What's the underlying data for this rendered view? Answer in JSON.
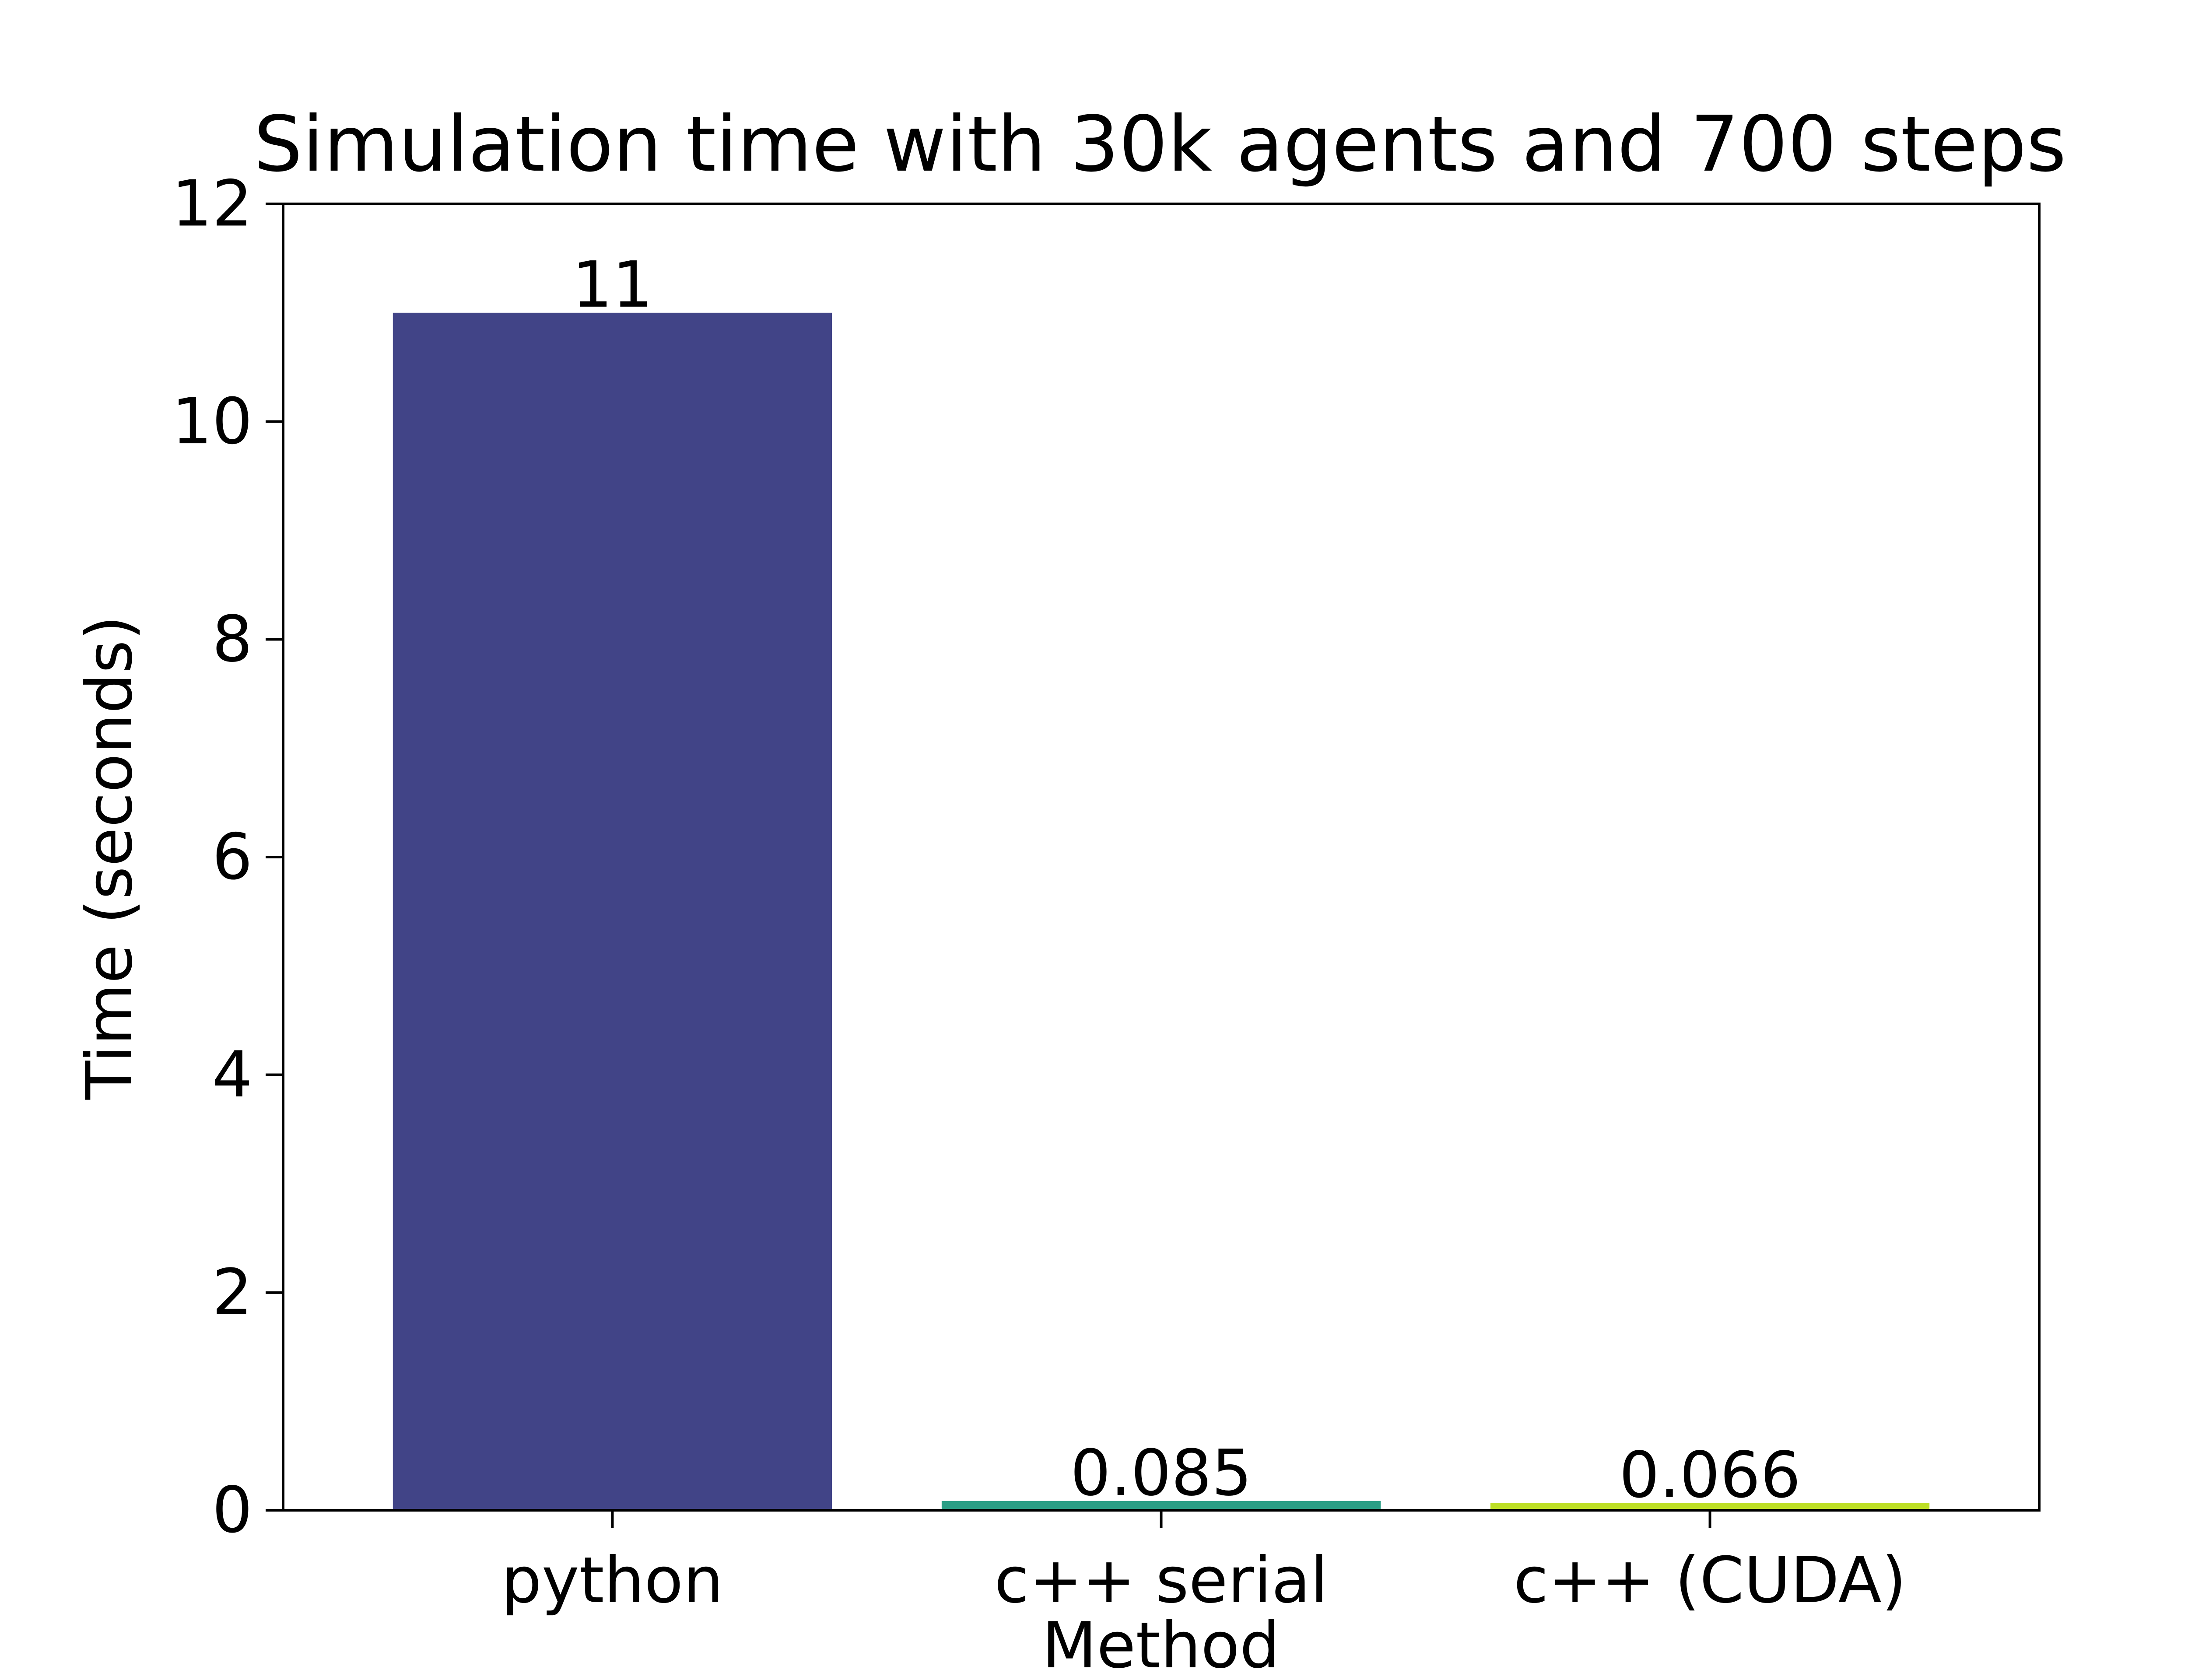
{
  "chart_data": {
    "type": "bar",
    "title": "Simulation time with 30k agents and 700 steps",
    "xlabel": "Method",
    "ylabel": "Time (seconds)",
    "categories": [
      "python",
      "c++ serial",
      "c++ (CUDA)"
    ],
    "values": [
      11,
      0.085,
      0.066
    ],
    "data_labels": [
      "11",
      "0.085",
      "0.066"
    ],
    "colors": [
      "#414487",
      "#2a9e85",
      "#bddf26"
    ],
    "ylim": [
      0,
      12
    ],
    "yticks": [
      0,
      2,
      4,
      6,
      8,
      10,
      12
    ],
    "grid": false,
    "legend": "none"
  }
}
